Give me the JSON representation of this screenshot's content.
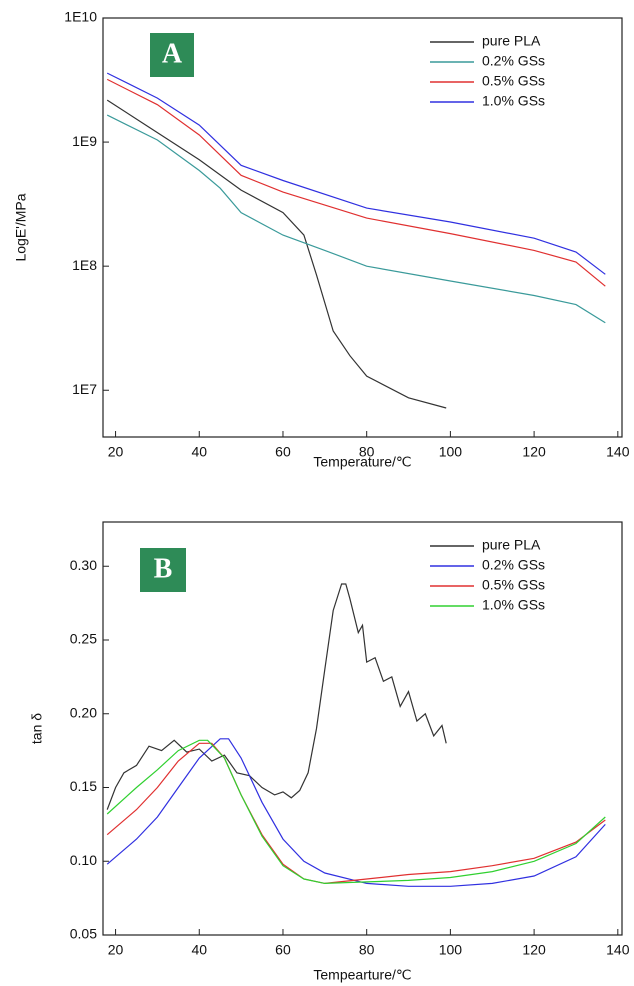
{
  "chart_data": [
    {
      "type": "line",
      "annotation": "A",
      "xlabel": "Temperature/℃",
      "ylabel": "LogE'/MPa",
      "xlim": [
        17,
        141
      ],
      "xticks": [
        20,
        40,
        60,
        80,
        100,
        120,
        140
      ],
      "ylim": [
        4200000,
        10000000000
      ],
      "log_y": true,
      "yticks": [
        {
          "value": 10000000,
          "label": "1E7"
        },
        {
          "value": 100000000,
          "label": "1E8"
        },
        {
          "value": 1000000000,
          "label": "1E9"
        },
        {
          "value": 10000000000,
          "label": "1E10"
        }
      ],
      "legend": "upper right",
      "series": [
        {
          "name": "pure PLA",
          "color": "#333333",
          "x": [
            18,
            40,
            50,
            60,
            65,
            68,
            72,
            76,
            80,
            90,
            99
          ],
          "values": [
            2180000000,
            720000000,
            410000000,
            270000000,
            178000000,
            85000000,
            30000000,
            19000000,
            13000000,
            8700000,
            7200000
          ]
        },
        {
          "name": "0.2% GSs",
          "color": "#3a9a9a",
          "x": [
            18,
            30,
            40,
            45,
            50,
            60,
            70,
            80,
            100,
            120,
            130,
            137
          ],
          "values": [
            1650000000,
            1040000000,
            590000000,
            425000000,
            270000000,
            178000000,
            134000000,
            100000000,
            76000000,
            58000000,
            49000000,
            35000000
          ]
        },
        {
          "name": "0.5% GSs",
          "color": "#e03030",
          "x": [
            18,
            30,
            40,
            50,
            60,
            80,
            100,
            120,
            130,
            137
          ],
          "values": [
            3200000000,
            2000000000,
            1140000000,
            540000000,
            395000000,
            244000000,
            183000000,
            134000000,
            108000000,
            69000000
          ]
        },
        {
          "name": "1.0% GSs",
          "color": "#3030e0",
          "x": [
            18,
            30,
            40,
            50,
            60,
            80,
            100,
            120,
            130,
            137
          ],
          "values": [
            3600000000,
            2260000000,
            1370000000,
            650000000,
            490000000,
            294000000,
            227000000,
            168000000,
            130000000,
            86000000
          ]
        }
      ]
    },
    {
      "type": "line",
      "annotation": "B",
      "xlabel": "Tempearture/℃",
      "ylabel": "tan δ",
      "xlim": [
        17,
        141
      ],
      "xticks": [
        20,
        40,
        60,
        80,
        100,
        120,
        140
      ],
      "ylim": [
        0.05,
        0.33
      ],
      "yticks": [
        0.05,
        {
          "value": 0.1,
          "label": "0.10"
        },
        0.15,
        {
          "value": 0.2,
          "label": "0.20"
        },
        0.25,
        {
          "value": 0.3,
          "label": "0.30"
        }
      ],
      "legend": "upper right",
      "series": [
        {
          "name": "pure PLA",
          "color": "#333333",
          "x": [
            18,
            20,
            22,
            25,
            28,
            31,
            34,
            37,
            40,
            43,
            46,
            49,
            52,
            55,
            58,
            60,
            62,
            64,
            66,
            68,
            70,
            72,
            74,
            75,
            76,
            78,
            79,
            80,
            82,
            84,
            86,
            88,
            90,
            92,
            94,
            96,
            98,
            99
          ],
          "values": [
            0.135,
            0.15,
            0.16,
            0.165,
            0.178,
            0.175,
            0.182,
            0.174,
            0.176,
            0.168,
            0.172,
            0.16,
            0.158,
            0.15,
            0.145,
            0.147,
            0.143,
            0.148,
            0.16,
            0.19,
            0.23,
            0.27,
            0.288,
            0.288,
            0.278,
            0.255,
            0.26,
            0.235,
            0.238,
            0.222,
            0.225,
            0.205,
            0.215,
            0.195,
            0.2,
            0.185,
            0.192,
            0.18
          ]
        },
        {
          "name": "0.2% GSs",
          "color": "#3030e0",
          "x": [
            18,
            25,
            30,
            35,
            40,
            45,
            47,
            50,
            55,
            60,
            65,
            70,
            80,
            90,
            100,
            110,
            120,
            130,
            137
          ],
          "values": [
            0.098,
            0.115,
            0.13,
            0.15,
            0.17,
            0.183,
            0.183,
            0.17,
            0.14,
            0.115,
            0.1,
            0.092,
            0.085,
            0.083,
            0.083,
            0.085,
            0.09,
            0.103,
            0.125
          ]
        },
        {
          "name": "0.5% GSs",
          "color": "#e03030",
          "x": [
            18,
            25,
            30,
            35,
            40,
            43,
            46,
            50,
            55,
            60,
            65,
            70,
            80,
            90,
            100,
            110,
            120,
            130,
            137
          ],
          "values": [
            0.118,
            0.135,
            0.15,
            0.168,
            0.18,
            0.18,
            0.17,
            0.145,
            0.118,
            0.098,
            0.088,
            0.085,
            0.088,
            0.091,
            0.093,
            0.097,
            0.102,
            0.113,
            0.128
          ]
        },
        {
          "name": "1.0% GSs",
          "color": "#30d030",
          "x": [
            18,
            25,
            30,
            35,
            40,
            42,
            46,
            50,
            55,
            60,
            65,
            70,
            80,
            90,
            100,
            110,
            120,
            130,
            137
          ],
          "values": [
            0.132,
            0.15,
            0.162,
            0.175,
            0.182,
            0.182,
            0.17,
            0.145,
            0.117,
            0.097,
            0.088,
            0.085,
            0.086,
            0.087,
            0.089,
            0.093,
            0.1,
            0.112,
            0.13
          ]
        }
      ]
    }
  ]
}
